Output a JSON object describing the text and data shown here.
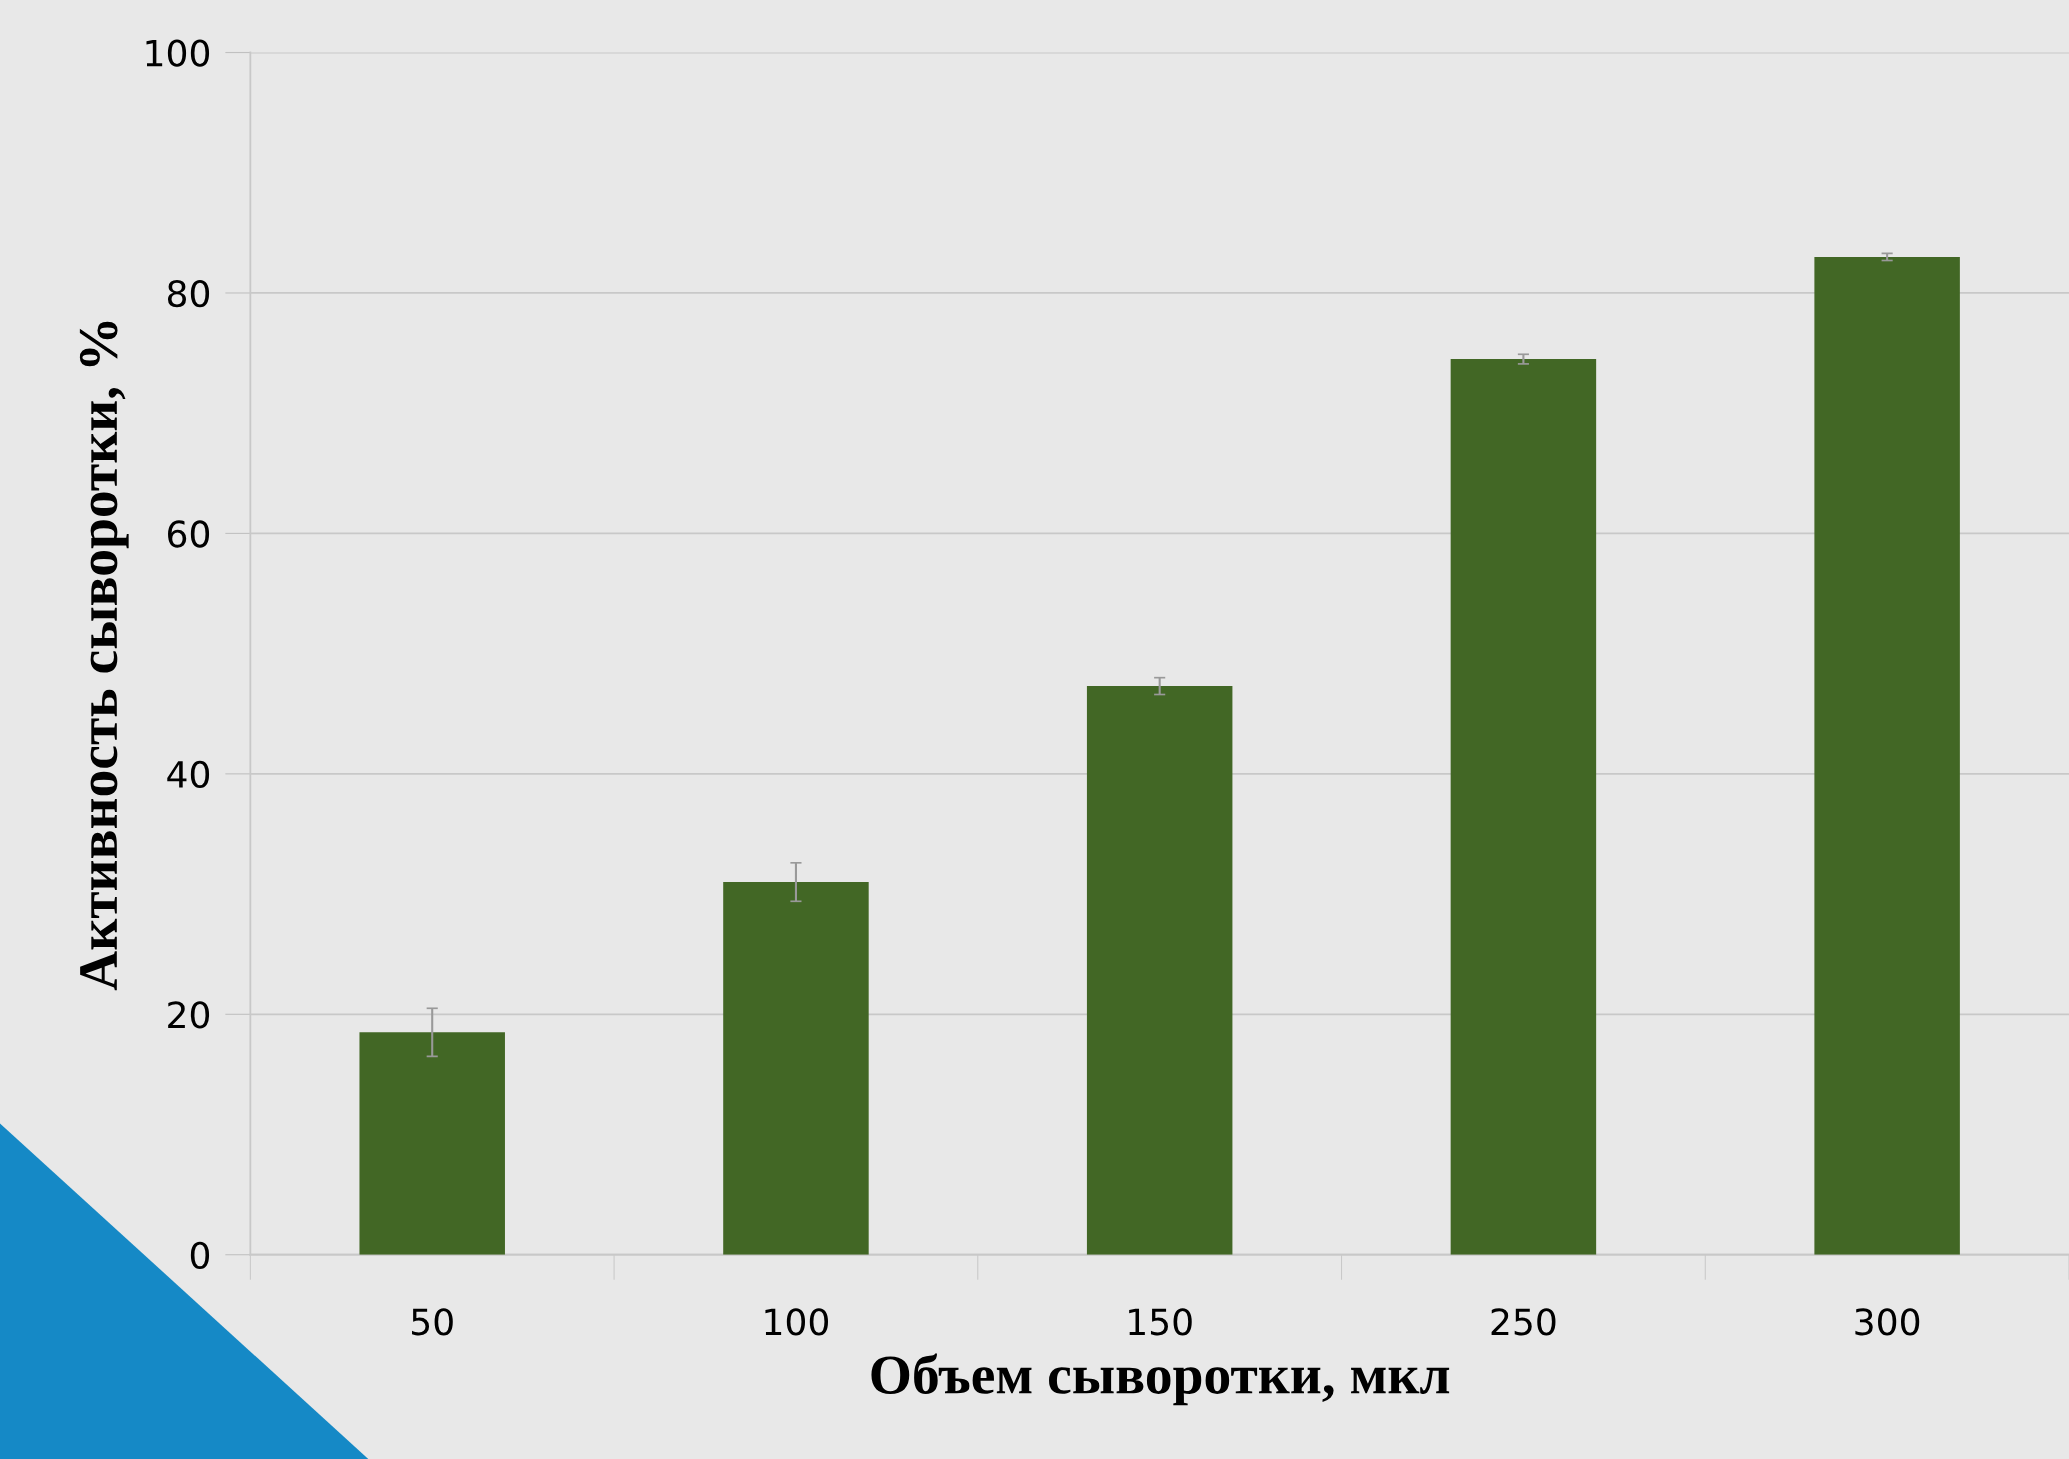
{
  "chart_data": {
    "type": "bar",
    "xlabel": "Объем сыворотки, мкл",
    "ylabel": "Активность сыворотки, %",
    "categories": [
      "50",
      "100",
      "150",
      "250",
      "300"
    ],
    "values": [
      18.5,
      31.0,
      47.3,
      74.5,
      83.0
    ],
    "errors": [
      2.0,
      1.6,
      0.7,
      0.4,
      0.3
    ],
    "color": "#426725",
    "ylim": [
      0,
      100
    ],
    "yticks": [
      0,
      20,
      40,
      60,
      80,
      100
    ],
    "grid": "y",
    "legend": false
  }
}
